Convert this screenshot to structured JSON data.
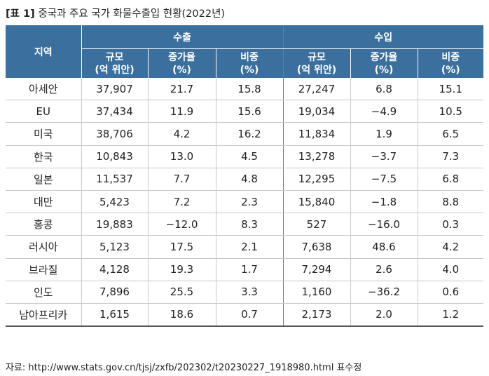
{
  "title": {
    "tag": "[표 1]",
    "text": "중국과 주요 국가 화물수출입 현황(2022년)"
  },
  "table": {
    "region_header": "지역",
    "groups": [
      "수출",
      "수입"
    ],
    "subheaders": [
      {
        "line1": "규모",
        "line2": "(억 위안)"
      },
      {
        "line1": "증가율",
        "line2": "(%)"
      },
      {
        "line1": "비중",
        "line2": "(%)"
      },
      {
        "line1": "규모",
        "line2": "(억 위안)"
      },
      {
        "line1": "증가율",
        "line2": "(%)"
      },
      {
        "line1": "비중",
        "line2": "(%)"
      }
    ],
    "rows": [
      {
        "region": "아세안",
        "cells": [
          "37,907",
          "21.7",
          "15.8",
          "27,247",
          "6.8",
          "15.1"
        ]
      },
      {
        "region": "EU",
        "cells": [
          "37,434",
          "11.9",
          "15.6",
          "19,034",
          "−4.9",
          "10.5"
        ]
      },
      {
        "region": "미국",
        "cells": [
          "38,706",
          "4.2",
          "16.2",
          "11,834",
          "1.9",
          "6.5"
        ]
      },
      {
        "region": "한국",
        "cells": [
          "10,843",
          "13.0",
          "4.5",
          "13,278",
          "−3.7",
          "7.3"
        ]
      },
      {
        "region": "일본",
        "cells": [
          "11,537",
          "7.7",
          "4.8",
          "12,295",
          "−7.5",
          "6.8"
        ]
      },
      {
        "region": "대만",
        "cells": [
          "5,423",
          "7.2",
          "2.3",
          "15,840",
          "−1.8",
          "8.8"
        ]
      },
      {
        "region": "홍콩",
        "cells": [
          "19,883",
          "−12.0",
          "8.3",
          "527",
          "−16.0",
          "0.3"
        ]
      },
      {
        "region": "러시아",
        "cells": [
          "5,123",
          "17.5",
          "2.1",
          "7,638",
          "48.6",
          "4.2"
        ]
      },
      {
        "region": "브라질",
        "cells": [
          "4,128",
          "19.3",
          "1.7",
          "7,294",
          "2.6",
          "4.0"
        ]
      },
      {
        "region": "인도",
        "cells": [
          "7,896",
          "25.5",
          "3.3",
          "1,160",
          "−36.2",
          "0.6"
        ]
      },
      {
        "region": "남아프리카",
        "cells": [
          "1,615",
          "18.6",
          "0.7",
          "2,173",
          "2.0",
          "1.2"
        ]
      }
    ]
  },
  "source": "자료: http://www.stats.gov.cn/tjsj/zxfb/202302/t20230227_1918980.html 표수정",
  "colors": {
    "header_bg": "#3a6f9e",
    "header_text": "#ffffff"
  }
}
